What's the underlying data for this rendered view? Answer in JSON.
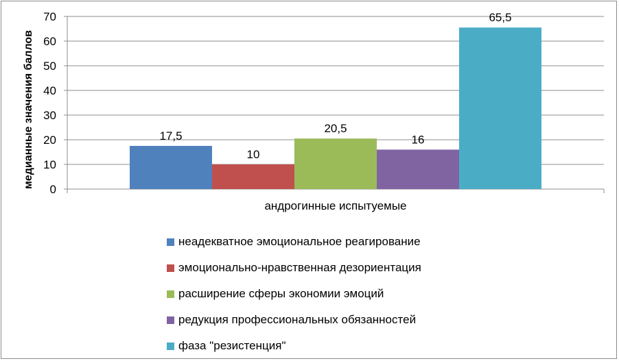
{
  "chart_data": {
    "type": "bar",
    "categories": [
      "андрогинные испытуемые"
    ],
    "series": [
      {
        "name": "неадекватное эмоциональное реагирование",
        "values": [
          17.5
        ],
        "label": "17,5",
        "color": "#4F81BD"
      },
      {
        "name": "эмоционально-нравственная дезориентация",
        "values": [
          10
        ],
        "label": "10",
        "color": "#C0504D"
      },
      {
        "name": "расширение сферы экономии эмоций",
        "values": [
          20.5
        ],
        "label": "20,5",
        "color": "#9BBB59"
      },
      {
        "name": "редукция профессиональных обязанностей",
        "values": [
          16
        ],
        "label": "16",
        "color": "#8064A2"
      },
      {
        "name": "фаза \"резистенция\"",
        "values": [
          65.5
        ],
        "label": "65,5",
        "color": "#4BACC6"
      }
    ],
    "title": "",
    "xlabel": "андрогинные испытуемые",
    "ylabel": "медианные значения баллов",
    "ylim": [
      0,
      70
    ],
    "yticks": [
      "0",
      "10",
      "20",
      "30",
      "40",
      "50",
      "60",
      "70"
    ],
    "grid": true,
    "legend_position": "bottom"
  }
}
